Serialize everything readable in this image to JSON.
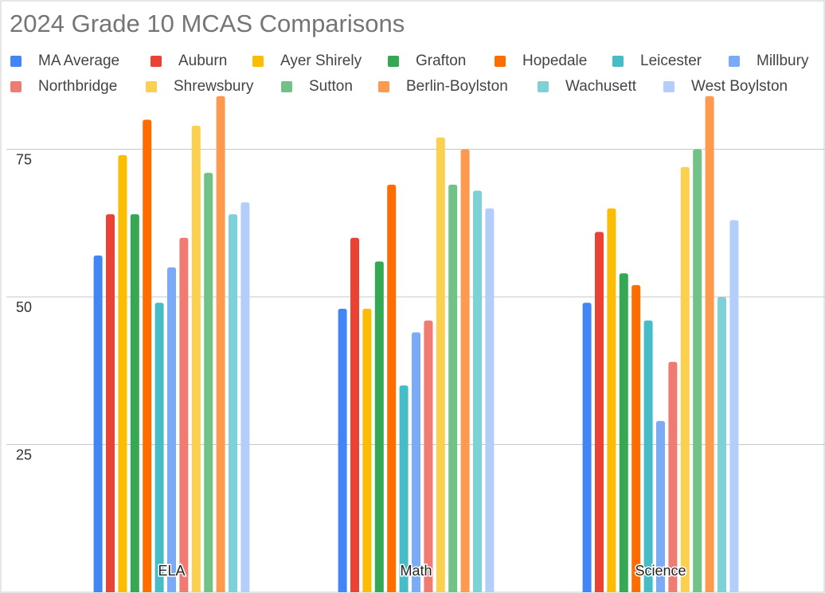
{
  "chart_data": {
    "type": "bar",
    "title": "2024 Grade 10 MCAS Comparisons",
    "categories": [
      "ELA",
      "Math",
      "Science"
    ],
    "ylim": [
      0,
      100
    ],
    "yticks": [
      25,
      50,
      75
    ],
    "grid": true,
    "series": [
      {
        "name": "MA Average",
        "color": "#4285f4",
        "values": [
          57,
          48,
          49
        ]
      },
      {
        "name": "Auburn",
        "color": "#ea4335",
        "values": [
          64,
          60,
          61
        ]
      },
      {
        "name": "Ayer Shirely",
        "color": "#fbbc04",
        "values": [
          74,
          48,
          65
        ]
      },
      {
        "name": "Grafton",
        "color": "#34a853",
        "values": [
          64,
          56,
          54
        ]
      },
      {
        "name": "Hopedale",
        "color": "#ff6d01",
        "values": [
          80,
          69,
          52
        ]
      },
      {
        "name": "Leicester",
        "color": "#46bdc6",
        "values": [
          49,
          35,
          46
        ]
      },
      {
        "name": "Millbury",
        "color": "#7baaf7",
        "values": [
          55,
          44,
          29
        ]
      },
      {
        "name": "Northbridge",
        "color": "#f07b72",
        "values": [
          60,
          46,
          39
        ]
      },
      {
        "name": "Shrewsbury",
        "color": "#fcd04f",
        "values": [
          79,
          77,
          72
        ]
      },
      {
        "name": "Sutton",
        "color": "#71c287",
        "values": [
          71,
          69,
          75
        ]
      },
      {
        "name": "Berlin-Boylston",
        "color": "#ff994d",
        "values": [
          84,
          75,
          84
        ]
      },
      {
        "name": "Wachusett",
        "color": "#7ed1d7",
        "values": [
          64,
          68,
          50
        ]
      },
      {
        "name": "West Boylston",
        "color": "#b3cefb",
        "values": [
          66,
          65,
          63
        ]
      }
    ]
  }
}
